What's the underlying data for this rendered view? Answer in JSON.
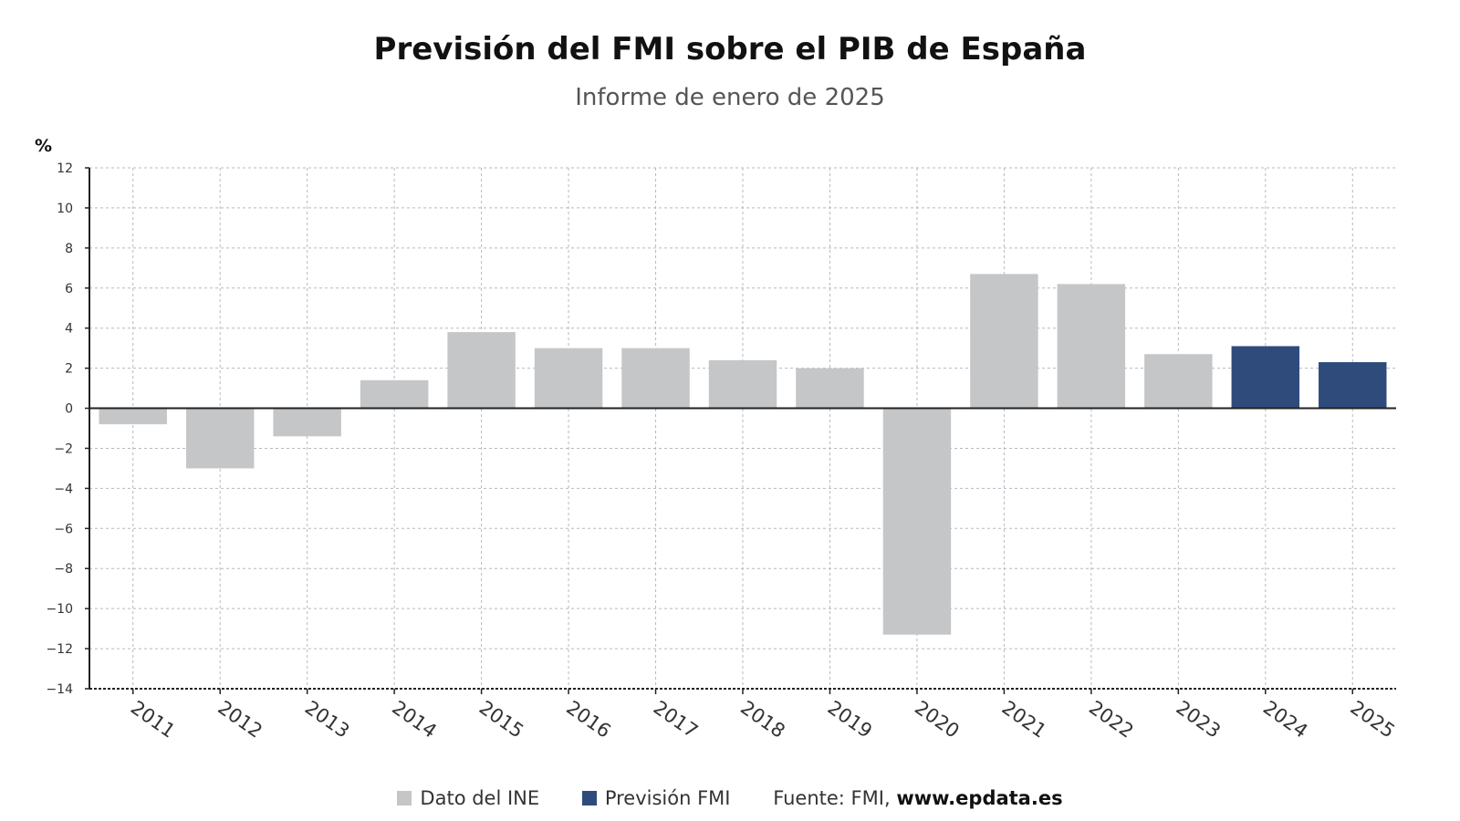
{
  "title": "Previsión del FMI sobre el PIB de España",
  "subtitle": "Informe de enero de 2025",
  "legend": {
    "ine_label": "Dato del INE",
    "fmi_label": "Previsión FMI",
    "source_prefix": "Fuente: FMI,",
    "source_url": "www.epdata.es"
  },
  "colors": {
    "ine": "#c4c6c8",
    "fmi": "#2e4b7c",
    "grid": "#b8b8c2",
    "axis": "#222222"
  },
  "chart_data": {
    "type": "bar",
    "title": "Previsión del FMI sobre el PIB de España",
    "subtitle": "Informe de enero de 2025",
    "ylabel": "%",
    "xlabel": "",
    "ylim": [
      -14,
      12
    ],
    "yticks": [
      12,
      10,
      8,
      6,
      4,
      2,
      0,
      -2,
      -4,
      -6,
      -8,
      -10,
      -12,
      -14
    ],
    "ytick_labels": [
      "12",
      "10",
      "8",
      "6",
      "4",
      "2",
      "0",
      "−2",
      "−4",
      "−6",
      "−8",
      "−10",
      "−12",
      "−14"
    ],
    "grid": true,
    "legend_position": "bottom",
    "categories": [
      "2011",
      "2012",
      "2013",
      "2014",
      "2015",
      "2016",
      "2017",
      "2018",
      "2019",
      "2020",
      "2021",
      "2022",
      "2023",
      "2024",
      "2025"
    ],
    "series": [
      {
        "name": "Dato del INE",
        "values": [
          -0.8,
          -3.0,
          -1.4,
          1.4,
          3.8,
          3.0,
          3.0,
          2.4,
          2.0,
          -11.3,
          6.7,
          6.2,
          2.7,
          null,
          null
        ]
      },
      {
        "name": "Previsión FMI",
        "values": [
          null,
          null,
          null,
          null,
          null,
          null,
          null,
          null,
          null,
          null,
          null,
          null,
          null,
          3.1,
          2.3
        ]
      }
    ]
  }
}
